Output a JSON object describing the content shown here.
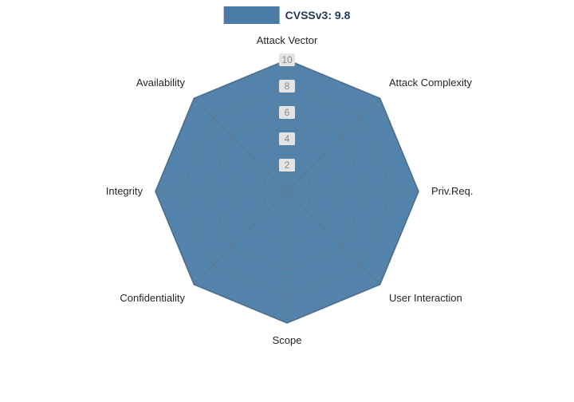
{
  "chart": {
    "legend": {
      "label": "CVSSv3: 9.8"
    },
    "colors": {
      "fill": "#4a7ba7",
      "fill_opacity": 0.95,
      "stroke": "#3e6b96",
      "grid": "#6e6e6e",
      "grid_opacity": 0.4,
      "tick_bg": "#e3e3e3",
      "tick_text": "#8a8a8a",
      "label_text": "#262626"
    }
  },
  "chart_data": {
    "type": "radar",
    "title": "",
    "legend_position": "top",
    "categories": [
      "Attack Vector",
      "Attack Complexity",
      "Priv.Req.",
      "User Interaction",
      "Scope",
      "Confidentiality",
      "Integrity",
      "Availability"
    ],
    "series": [
      {
        "name": "CVSSv3: 9.8",
        "values": [
          10,
          10,
          10,
          10,
          10,
          10,
          10,
          10
        ]
      }
    ],
    "values": [
      10,
      10,
      10,
      10,
      10,
      10,
      10,
      10
    ],
    "ticks": [
      2,
      4,
      6,
      8,
      10
    ],
    "rmax": 10,
    "grid": "polygon-web"
  }
}
